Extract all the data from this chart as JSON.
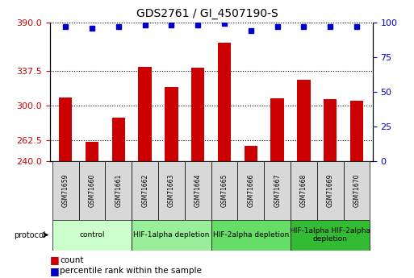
{
  "title": "GDS2761 / GI_4507190-S",
  "samples": [
    "GSM71659",
    "GSM71660",
    "GSM71661",
    "GSM71662",
    "GSM71663",
    "GSM71664",
    "GSM71665",
    "GSM71666",
    "GSM71667",
    "GSM71668",
    "GSM71669",
    "GSM71670"
  ],
  "counts": [
    309,
    261,
    287,
    342,
    320,
    341,
    368,
    257,
    308,
    328,
    307,
    305
  ],
  "percentile_ranks": [
    97,
    96,
    97,
    98,
    98,
    98,
    99,
    94,
    97,
    97,
    97,
    97
  ],
  "ylim_left": [
    240,
    390
  ],
  "ylim_right": [
    0,
    100
  ],
  "yticks_left": [
    240,
    262.5,
    300,
    337.5,
    390
  ],
  "yticks_right": [
    0,
    25,
    50,
    75,
    100
  ],
  "bar_color": "#cc0000",
  "dot_color": "#0000cc",
  "plot_bg": "#ffffff",
  "sample_box_color": "#d8d8d8",
  "protocol_groups": [
    {
      "label": "control",
      "start": 0,
      "end": 2,
      "color": "#ccffcc"
    },
    {
      "label": "HIF-1alpha depletion",
      "start": 3,
      "end": 5,
      "color": "#99ee99"
    },
    {
      "label": "HIF-2alpha depletion",
      "start": 6,
      "end": 8,
      "color": "#66dd66"
    },
    {
      "label": "HIF-1alpha HIF-2alpha\ndepletion",
      "start": 9,
      "end": 11,
      "color": "#33bb33"
    }
  ],
  "legend_count_label": "count",
  "legend_pct_label": "percentile rank within the sample",
  "tick_label_color_left": "#cc0000",
  "tick_label_color_right": "#0000cc"
}
